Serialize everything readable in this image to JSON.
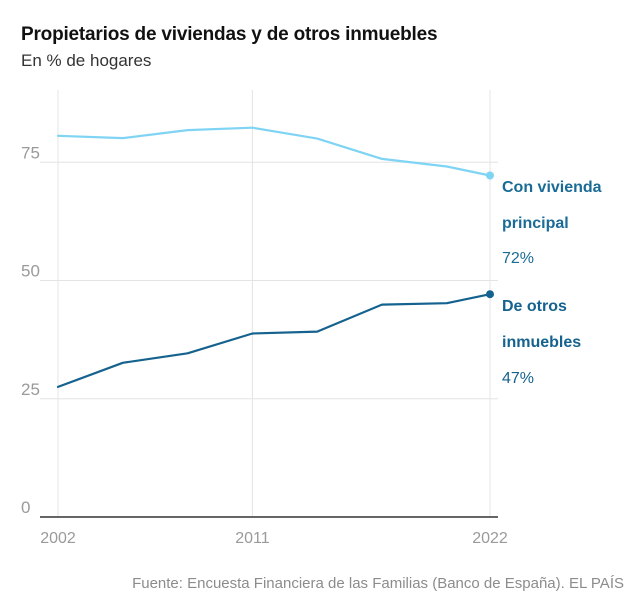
{
  "header": {
    "title": "Propietarios de viviendas y de otros inmuebles",
    "subtitle": "En % de hogares"
  },
  "footer": {
    "source": "Fuente: Encuesta Financiera de las Familias (Banco de España). EL PAÍS"
  },
  "chart_data": {
    "type": "line",
    "title": "Propietarios de viviendas y de otros inmuebles",
    "subtitle": "En % de hogares",
    "xlabel": "",
    "ylabel": "",
    "xlim": [
      2002,
      2022
    ],
    "ylim": [
      0,
      90
    ],
    "x_ticks": [
      "2002",
      "2011",
      "2022"
    ],
    "y_ticks": [
      "0",
      "25",
      "50",
      "75"
    ],
    "grid": true,
    "legend": "direct labels at right end of lines",
    "series": [
      {
        "name": "Con vivienda principal",
        "name_lines": [
          "Con vivienda",
          "principal"
        ],
        "end_label": "72%",
        "color": "#7fd4f4",
        "label_color": "#1a6b96",
        "x": [
          2002,
          2005,
          2008,
          2011,
          2014,
          2017,
          2020,
          2022
        ],
        "values": [
          80.6,
          80.1,
          81.8,
          82.3,
          80.0,
          75.7,
          74.1,
          72.2
        ]
      },
      {
        "name": "De otros inmuebles",
        "name_lines": [
          "De otros",
          "inmuebles"
        ],
        "end_label": "47%",
        "color": "#15628f",
        "label_color": "#15628f",
        "x": [
          2002,
          2005,
          2008,
          2011,
          2014,
          2017,
          2020,
          2022
        ],
        "values": [
          27.5,
          32.6,
          34.6,
          38.8,
          39.2,
          44.9,
          45.2,
          47.1
        ]
      }
    ]
  }
}
